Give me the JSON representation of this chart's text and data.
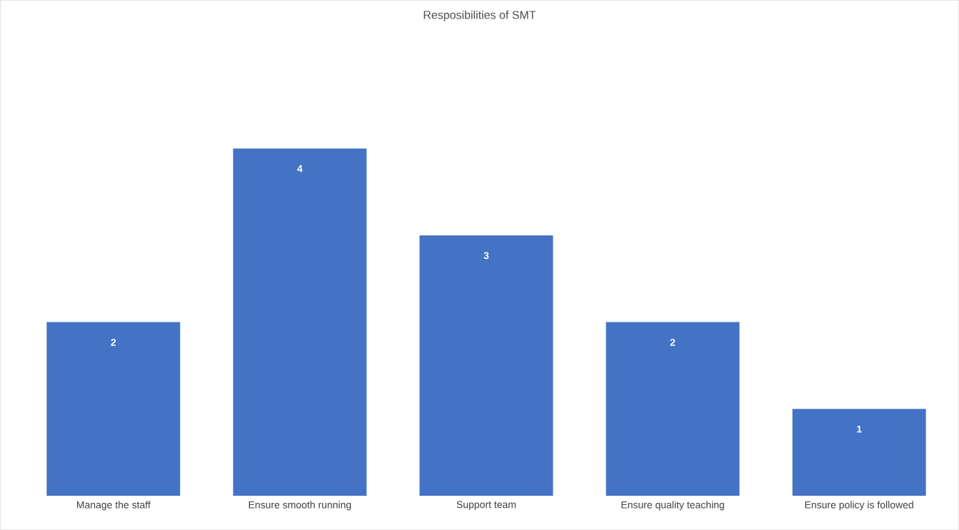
{
  "chart_data": {
    "type": "bar",
    "title": "Resposibilities of SMT",
    "categories": [
      "Manage the staff",
      "Ensure smooth running",
      "Support team",
      "Ensure quality teaching",
      "Ensure policy is followed"
    ],
    "values": [
      2,
      4,
      3,
      2,
      1
    ],
    "color": "#4472c4",
    "data_labels": true
  }
}
